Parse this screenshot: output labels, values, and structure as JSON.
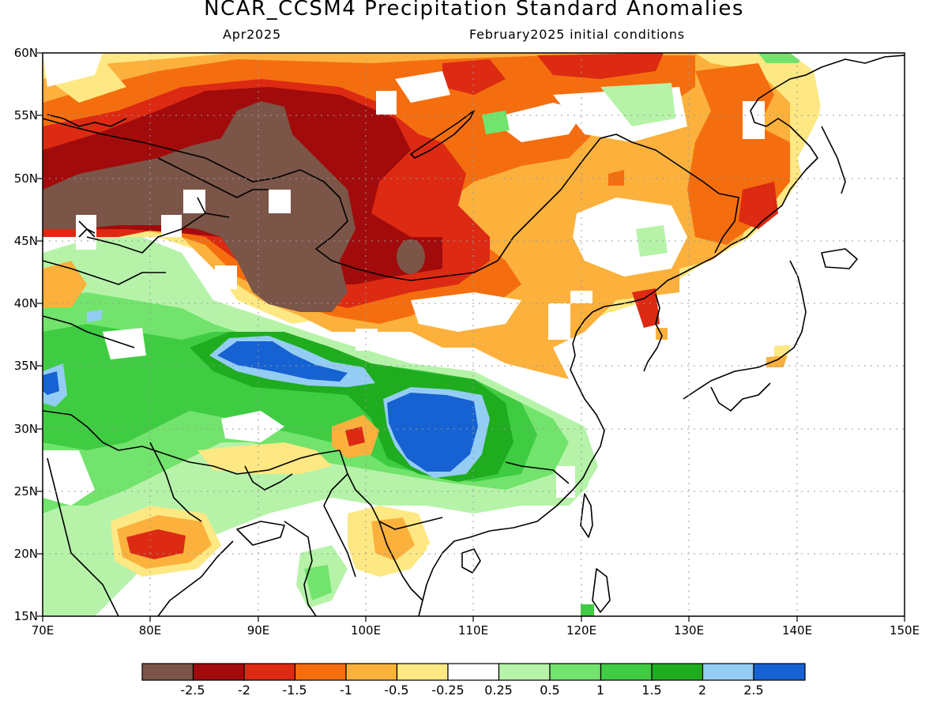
{
  "header": {
    "title": "NCAR_CCSM4 Precipitation Standard Anomalies",
    "month": "Apr2025",
    "init": "February2025 initial conditions"
  },
  "map": {
    "lat_ticks": [
      "60N",
      "55N",
      "50N",
      "45N",
      "40N",
      "35N",
      "30N",
      "25N",
      "20N",
      "15N"
    ],
    "lon_ticks": [
      "70E",
      "80E",
      "90E",
      "100E",
      "110E",
      "120E",
      "130E",
      "140E",
      "150E"
    ],
    "lat_range": [
      15,
      60
    ],
    "lon_range": [
      70,
      150
    ],
    "grid": "dotted",
    "regions": [
      {
        "name": "mongolia-xinjiang-dry",
        "category": "< -2.5"
      },
      {
        "name": "tibetan-plateau-wet",
        "category": "> 2.5"
      },
      {
        "name": "sichuan-basin-wet",
        "category": "> 2.5"
      },
      {
        "name": "northeast-china-dry",
        "category": "-1 to -0.5"
      }
    ]
  },
  "colorbar": {
    "labels": [
      "-2.5",
      "-2",
      "-1.5",
      "-1",
      "-0.5",
      "-0.25",
      "0.25",
      "0.5",
      "1",
      "1.5",
      "2",
      "2.5"
    ],
    "colors": [
      "#7b5548",
      "#a20b0b",
      "#dc2a13",
      "#f46e0f",
      "#fbb13c",
      "#fde883",
      "#ffffff",
      "#b6f3a9",
      "#72e36c",
      "#3fcc42",
      "#1fac1f",
      "#94cdf4",
      "#1762d2"
    ]
  }
}
